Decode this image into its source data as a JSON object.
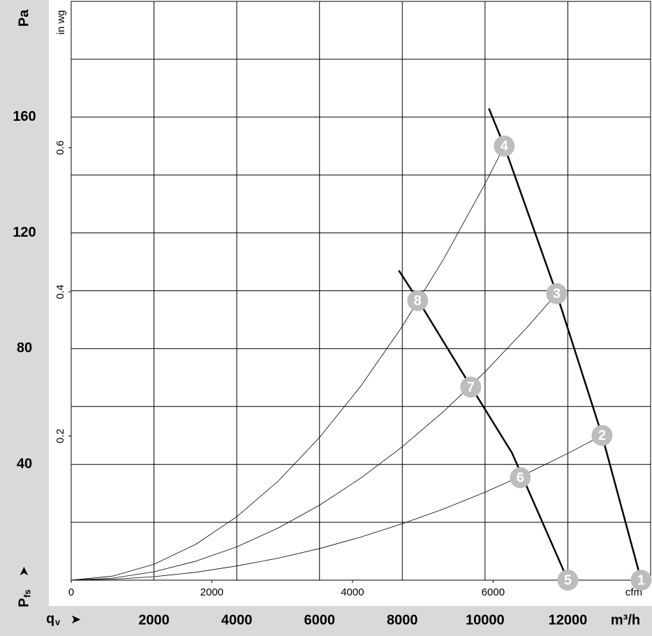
{
  "chart_data": {
    "type": "line",
    "y_label": "Pa",
    "y2_label": "in wg",
    "x_label": "m³/h",
    "x2_label": "cfm",
    "y_symbol": "P",
    "y_symbol_sub": "fs",
    "x_symbol": "q",
    "x_symbol_sub": "v",
    "xlim": [
      0,
      14000
    ],
    "xticks": [
      2000,
      4000,
      6000,
      8000,
      10000,
      12000
    ],
    "x_minor_ticks": [
      14000
    ],
    "ylim": [
      0,
      200
    ],
    "yticks": [
      40,
      80,
      120,
      160
    ],
    "y_minor_ticks": [
      20,
      60,
      100,
      140,
      180,
      200
    ],
    "x2lim": [
      0,
      8240
    ],
    "x2ticks": [
      0,
      2000,
      4000,
      6000
    ],
    "y2lim": [
      0,
      0.803
    ],
    "y2ticks": [
      0.2,
      0.4,
      0.6
    ],
    "grid": true,
    "series": [
      {
        "color": "#000000",
        "width": 2.5,
        "x": [
          10093,
          10464,
          11730,
          12827,
          13772
        ],
        "values": [
          163,
          150,
          99,
          50,
          0
        ]
      },
      {
        "color": "#000000",
        "width": 2.5,
        "x": [
          7916,
          8371,
          9654,
          10650,
          12000
        ],
        "values": [
          107,
          97,
          67,
          44,
          0
        ]
      },
      {
        "color": "#000000",
        "width": 0.8,
        "x": [
          0,
          1000,
          2000,
          3000,
          4000,
          5000,
          6000,
          7000,
          8000,
          9000,
          10000,
          10464
        ],
        "values": [
          0,
          1.4,
          5.5,
          12.3,
          21.9,
          34.2,
          49.3,
          67.1,
          87.7,
          111,
          137,
          150
        ]
      },
      {
        "color": "#000000",
        "width": 0.8,
        "x": [
          0,
          1000,
          2000,
          3000,
          4000,
          5000,
          6000,
          7000,
          8000,
          9000,
          10000,
          11000,
          11730
        ],
        "values": [
          0,
          0.7,
          2.9,
          6.5,
          11.5,
          18,
          25.9,
          35.3,
          46.1,
          58.3,
          72,
          87.1,
          99
        ]
      },
      {
        "color": "#000000",
        "width": 0.8,
        "x": [
          0,
          1000,
          2000,
          3000,
          4000,
          5000,
          6000,
          7000,
          8000,
          9000,
          10000,
          11000,
          12000,
          12827
        ],
        "values": [
          0,
          0.3,
          1.2,
          2.7,
          4.9,
          7.6,
          10.9,
          14.9,
          19.5,
          24.6,
          30.4,
          36.8,
          43.8,
          50
        ]
      }
    ],
    "operating_points": {
      "color": "#bdbdbd",
      "labels": [
        "1",
        "2",
        "3",
        "4",
        "5",
        "6",
        "7",
        "8"
      ],
      "x": [
        13772,
        12827,
        11730,
        10464,
        12000,
        10852,
        9654,
        8371
      ],
      "values": [
        0,
        50,
        99,
        150,
        0,
        35.4,
        66.7,
        96.6
      ]
    }
  }
}
